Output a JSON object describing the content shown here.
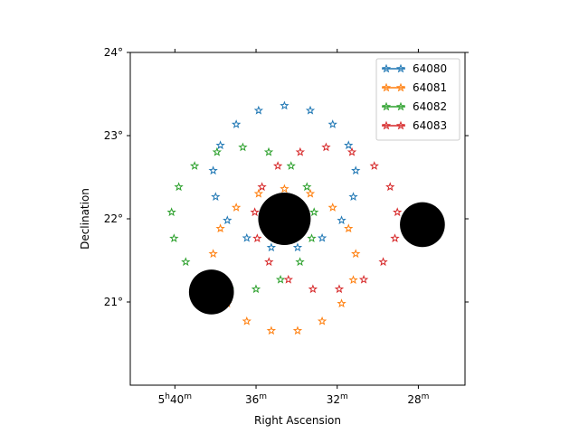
{
  "chart_data": {
    "type": "scatter",
    "title": "",
    "xlabel": "Right Ascension",
    "ylabel": "Declination",
    "xlim_minutes": [
      42.2,
      25.7
    ],
    "ylim_deg": [
      20.0,
      24.0
    ],
    "x_ticks": [
      {
        "minutes": 40,
        "label_main": "5",
        "label_main_unit": "h",
        "label_min": "40",
        "label_min_unit": "m"
      },
      {
        "minutes": 36,
        "label_main": "36",
        "label_main_unit": "m",
        "label_min": "",
        "label_min_unit": ""
      },
      {
        "minutes": 32,
        "label_main": "32",
        "label_main_unit": "m",
        "label_min": "",
        "label_min_unit": ""
      },
      {
        "minutes": 28,
        "label_main": "28",
        "label_main_unit": "m",
        "label_min": "",
        "label_min_unit": ""
      }
    ],
    "y_ticks": [
      {
        "deg": 21,
        "label": "21°"
      },
      {
        "deg": 22,
        "label": "22°"
      },
      {
        "deg": 23,
        "label": "23°"
      },
      {
        "deg": 24,
        "label": "24°"
      }
    ],
    "legend_position": "top-right",
    "series": [
      {
        "name": "64080",
        "color": "#1f77b4",
        "center_ra_min": 34.6,
        "center_dec": 22.0,
        "radius_deg": 1.0,
        "ring_count": 17,
        "marker": "star-outline"
      },
      {
        "name": "64081",
        "color": "#ff7f0e",
        "center_ra_min": 34.6,
        "center_dec": 22.0,
        "radius_deg": 1.0,
        "ring_count": 17,
        "marker": "star-outline"
      },
      {
        "name": "64082",
        "color": "#2ca02c",
        "center_ra_min": 34.6,
        "center_dec": 22.0,
        "radius_deg": 1.0,
        "ring_count": 17,
        "marker": "star-outline"
      },
      {
        "name": "64083",
        "color": "#d62728",
        "center_ra_min": 34.6,
        "center_dec": 22.0,
        "radius_deg": 1.0,
        "ring_count": 17,
        "marker": "star-outline"
      }
    ],
    "black_disks": [
      {
        "ra_min": 34.6,
        "dec": 22.0,
        "radius_deg": 0.35
      },
      {
        "ra_min": 38.2,
        "dec": 21.12,
        "radius_deg": 0.3
      },
      {
        "ra_min": 27.8,
        "dec": 21.93,
        "radius_deg": 0.3
      }
    ]
  }
}
